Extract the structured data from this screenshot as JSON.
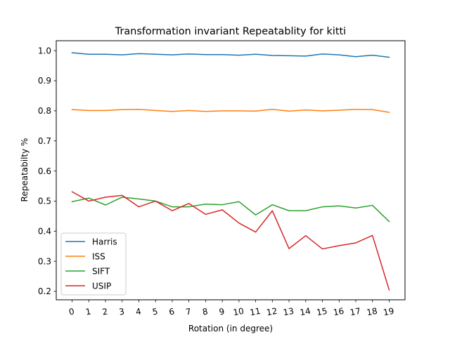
{
  "chart_data": {
    "type": "line",
    "title": "Transformation invariant Repeatablity for kitti",
    "xlabel": "Rotation (in degree)",
    "ylabel": "Repeatabilty %",
    "x": [
      0,
      1,
      2,
      3,
      4,
      5,
      6,
      7,
      8,
      9,
      10,
      11,
      12,
      13,
      14,
      15,
      16,
      17,
      18,
      19
    ],
    "x_tick_labels": [
      "0",
      "1",
      "2",
      "3",
      "4",
      "5",
      "6",
      "7",
      "8",
      "9",
      "10",
      "11",
      "12",
      "13",
      "14",
      "15",
      "16",
      "17",
      "18",
      "19"
    ],
    "y_ticks": [
      0.2,
      0.3,
      0.4,
      0.5,
      0.6,
      0.7,
      0.8,
      0.9,
      1.0
    ],
    "y_tick_labels": [
      "0.2",
      "0.3",
      "0.4",
      "0.5",
      "0.6",
      "0.7",
      "0.8",
      "0.9",
      "1.0"
    ],
    "xlim": [
      -0.95,
      19.95
    ],
    "ylim": [
      0.172,
      1.033
    ],
    "grid": false,
    "legend_position": "lower-left",
    "series": [
      {
        "name": "Harris",
        "color": "#1f77b4",
        "values": [
          0.993,
          0.988,
          0.988,
          0.986,
          0.99,
          0.988,
          0.986,
          0.989,
          0.987,
          0.987,
          0.985,
          0.988,
          0.984,
          0.983,
          0.982,
          0.989,
          0.986,
          0.98,
          0.985,
          0.978
        ]
      },
      {
        "name": "ISS",
        "color": "#ff7f0e",
        "values": [
          0.804,
          0.801,
          0.801,
          0.804,
          0.805,
          0.801,
          0.798,
          0.801,
          0.798,
          0.8,
          0.8,
          0.799,
          0.805,
          0.799,
          0.803,
          0.8,
          0.802,
          0.805,
          0.804,
          0.795
        ]
      },
      {
        "name": "SIFT",
        "color": "#2ca02c",
        "values": [
          0.498,
          0.51,
          0.487,
          0.513,
          0.507,
          0.5,
          0.481,
          0.481,
          0.49,
          0.488,
          0.498,
          0.454,
          0.488,
          0.468,
          0.468,
          0.481,
          0.484,
          0.477,
          0.486,
          0.432
        ]
      },
      {
        "name": "USIP",
        "color": "#d62728",
        "values": [
          0.531,
          0.5,
          0.513,
          0.519,
          0.481,
          0.5,
          0.468,
          0.492,
          0.456,
          0.471,
          0.427,
          0.397,
          0.468,
          0.342,
          0.385,
          0.341,
          0.352,
          0.361,
          0.386,
          0.205
        ]
      }
    ]
  }
}
